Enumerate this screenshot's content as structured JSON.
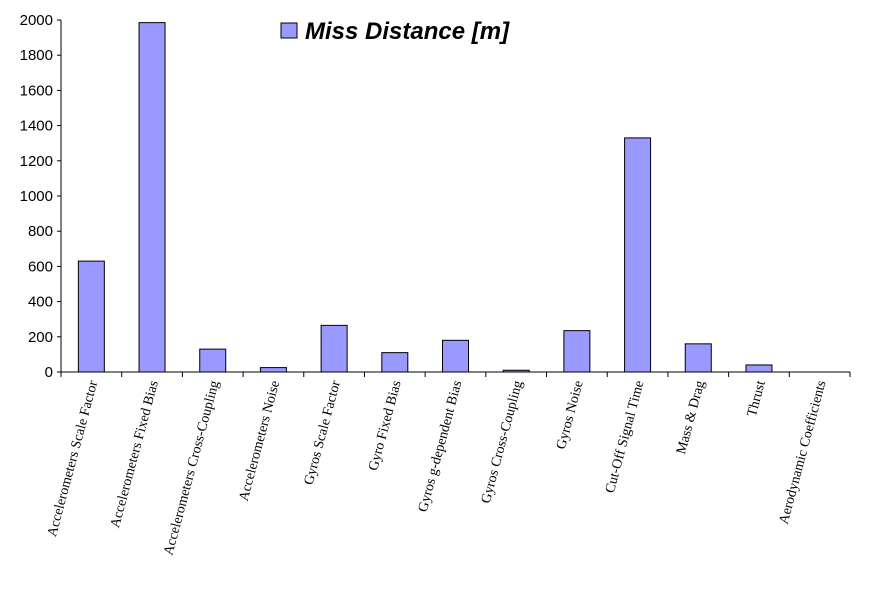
{
  "chart_data": {
    "type": "bar",
    "categories": [
      "Accelerometers Scale Factor",
      "Accelerometers Fixed Bias",
      "Accelerometers Cross-Coupling",
      "Accelerometers Noise",
      "Gyros Scale Factor",
      "Gyro Fixed Bias",
      "Gyros g-dependent Bias",
      "Gyros Cross-Coupling",
      "Gyros Noise",
      "Cut-Off Signal Time",
      "Mass & Drag",
      "Thrust",
      "Aerodynamic Coefficients"
    ],
    "series": [
      {
        "name": "Miss Distance [m]",
        "values": [
          630,
          1985,
          130,
          25,
          265,
          110,
          180,
          10,
          235,
          1330,
          160,
          40,
          0
        ]
      }
    ],
    "yticks": [
      0,
      200,
      400,
      600,
      800,
      1000,
      1200,
      1400,
      1600,
      1800,
      2000
    ],
    "ylim": [
      0,
      2000
    ],
    "title": "",
    "xlabel": "",
    "ylabel": "",
    "grid": false,
    "legend_position": "top-center",
    "colors": {
      "bar_fill": "#9999ff",
      "bar_stroke": "#000000",
      "axis": "#000000"
    }
  }
}
